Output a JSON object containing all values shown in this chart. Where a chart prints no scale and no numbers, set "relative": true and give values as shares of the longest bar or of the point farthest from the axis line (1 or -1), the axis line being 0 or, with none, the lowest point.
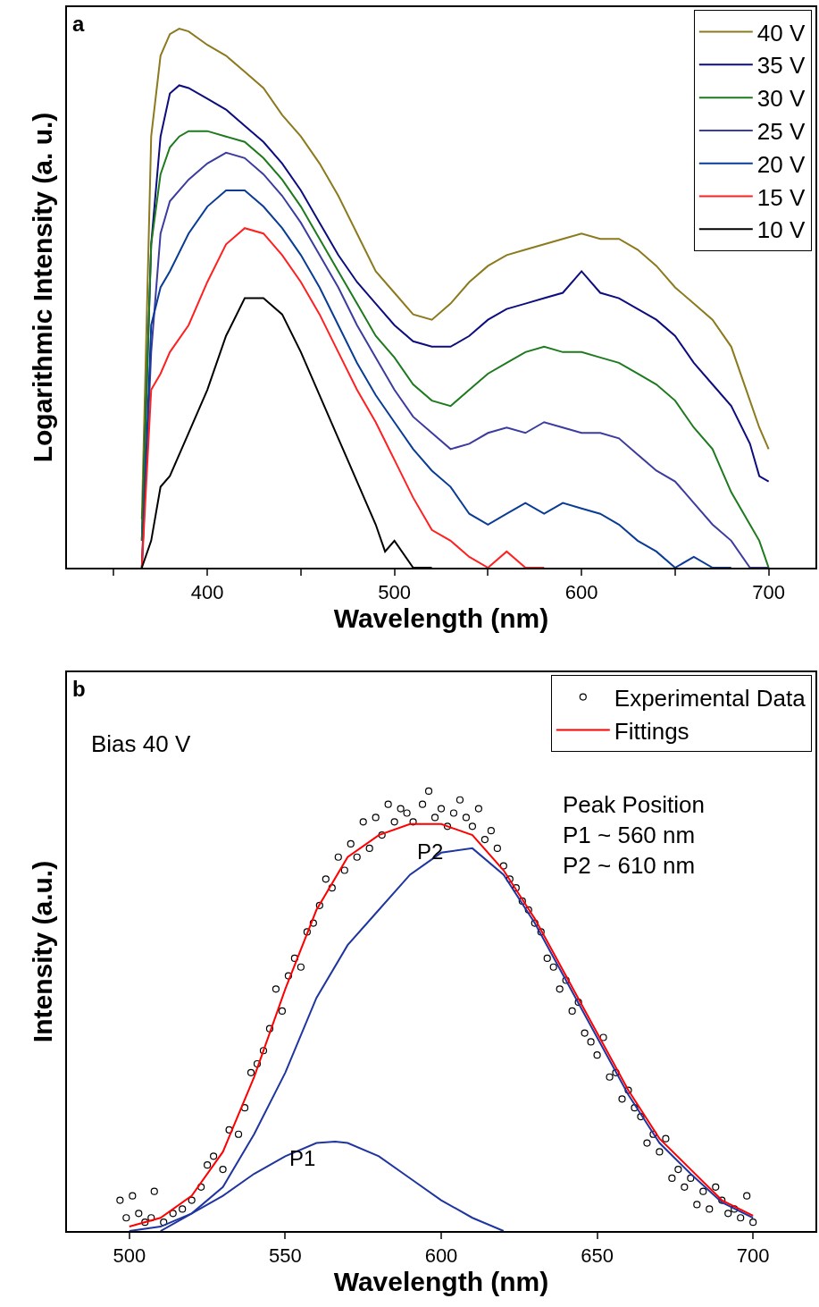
{
  "chart_data": [
    {
      "type": "line",
      "title": "a",
      "xlabel": "Wavelength (nm)",
      "ylabel": "Logarithmic Intensity (a. u.)",
      "relative": true,
      "xlim": [
        325,
        725
      ],
      "xticks": [
        {
          "value": 350,
          "label": null
        },
        400,
        {
          "value": 450,
          "label": null
        },
        500,
        {
          "value": 550,
          "label": null
        },
        600,
        {
          "value": 650,
          "label": null
        },
        700
      ],
      "tick_labels": "x",
      "grid": false,
      "legend": "top right",
      "marker": "none",
      "line_style": "solid",
      "series": [
        {
          "name": "40 V",
          "color": "#8c7a1e",
          "x": [
            365,
            370,
            375,
            380,
            385,
            390,
            400,
            410,
            420,
            430,
            440,
            450,
            460,
            470,
            480,
            490,
            500,
            510,
            520,
            530,
            540,
            550,
            560,
            570,
            580,
            590,
            600,
            610,
            620,
            630,
            640,
            650,
            660,
            670,
            680,
            690,
            695,
            700
          ],
          "values": [
            0.09,
            0.8,
            0.95,
            0.99,
            1.0,
            0.995,
            0.97,
            0.95,
            0.92,
            0.89,
            0.84,
            0.8,
            0.75,
            0.69,
            0.62,
            0.55,
            0.51,
            0.47,
            0.46,
            0.49,
            0.53,
            0.56,
            0.58,
            0.59,
            0.6,
            0.61,
            0.62,
            0.61,
            0.61,
            0.59,
            0.56,
            0.52,
            0.49,
            0.46,
            0.41,
            0.31,
            0.26,
            0.22
          ]
        },
        {
          "name": "35 V",
          "color": "#0d0d80",
          "x": [
            365,
            370,
            375,
            380,
            385,
            390,
            400,
            410,
            420,
            430,
            440,
            450,
            460,
            470,
            480,
            490,
            500,
            510,
            520,
            530,
            540,
            550,
            560,
            570,
            580,
            590,
            600,
            610,
            620,
            630,
            640,
            650,
            660,
            670,
            680,
            690,
            695,
            700
          ],
          "values": [
            0.05,
            0.6,
            0.8,
            0.88,
            0.895,
            0.89,
            0.87,
            0.85,
            0.82,
            0.79,
            0.75,
            0.7,
            0.64,
            0.58,
            0.53,
            0.49,
            0.45,
            0.42,
            0.41,
            0.41,
            0.43,
            0.46,
            0.48,
            0.49,
            0.5,
            0.51,
            0.55,
            0.51,
            0.5,
            0.48,
            0.46,
            0.43,
            0.38,
            0.34,
            0.3,
            0.23,
            0.17,
            0.16
          ]
        },
        {
          "name": "30 V",
          "color": "#1e7a1e",
          "x": [
            365,
            370,
            375,
            380,
            385,
            390,
            400,
            410,
            420,
            430,
            440,
            450,
            460,
            470,
            480,
            490,
            500,
            510,
            520,
            530,
            540,
            550,
            560,
            570,
            580,
            590,
            600,
            610,
            620,
            630,
            640,
            650,
            660,
            670,
            680,
            690,
            695,
            700
          ],
          "values": [
            0.05,
            0.6,
            0.73,
            0.78,
            0.8,
            0.81,
            0.81,
            0.8,
            0.79,
            0.76,
            0.72,
            0.67,
            0.61,
            0.55,
            0.49,
            0.43,
            0.39,
            0.34,
            0.31,
            0.3,
            0.33,
            0.36,
            0.38,
            0.4,
            0.41,
            0.4,
            0.4,
            0.39,
            0.38,
            0.36,
            0.34,
            0.31,
            0.26,
            0.22,
            0.14,
            0.08,
            0.05,
            0.0
          ]
        },
        {
          "name": "25 V",
          "color": "#3c3ca0",
          "x": [
            365,
            370,
            375,
            380,
            390,
            400,
            410,
            420,
            430,
            440,
            450,
            460,
            470,
            480,
            490,
            500,
            510,
            520,
            530,
            540,
            550,
            560,
            570,
            580,
            590,
            600,
            610,
            620,
            630,
            640,
            650,
            660,
            670,
            680,
            690,
            695,
            700
          ],
          "values": [
            0.0,
            0.4,
            0.62,
            0.68,
            0.72,
            0.75,
            0.77,
            0.76,
            0.73,
            0.69,
            0.64,
            0.58,
            0.52,
            0.45,
            0.39,
            0.33,
            0.28,
            0.25,
            0.22,
            0.23,
            0.25,
            0.26,
            0.25,
            0.27,
            0.26,
            0.25,
            0.25,
            0.24,
            0.21,
            0.18,
            0.16,
            0.12,
            0.08,
            0.05,
            0.0,
            0.0,
            0.0
          ]
        },
        {
          "name": "20 V",
          "color": "#0a3c96",
          "x": [
            365,
            370,
            375,
            380,
            390,
            400,
            410,
            420,
            430,
            440,
            450,
            460,
            470,
            480,
            490,
            500,
            510,
            520,
            530,
            540,
            550,
            560,
            570,
            580,
            590,
            600,
            610,
            620,
            630,
            640,
            650,
            660,
            670,
            680
          ],
          "values": [
            0.0,
            0.45,
            0.52,
            0.55,
            0.62,
            0.67,
            0.7,
            0.7,
            0.67,
            0.63,
            0.58,
            0.52,
            0.45,
            0.38,
            0.32,
            0.27,
            0.22,
            0.18,
            0.15,
            0.1,
            0.08,
            0.1,
            0.12,
            0.1,
            0.12,
            0.11,
            0.1,
            0.08,
            0.05,
            0.03,
            0.0,
            0.02,
            0.0,
            0.0
          ]
        },
        {
          "name": "15 V",
          "color": "#ff2020",
          "x": [
            365,
            370,
            375,
            380,
            390,
            400,
            410,
            420,
            430,
            440,
            450,
            460,
            470,
            480,
            490,
            500,
            510,
            520,
            530,
            540,
            550,
            560,
            570,
            580
          ],
          "values": [
            0.0,
            0.33,
            0.36,
            0.4,
            0.45,
            0.53,
            0.6,
            0.63,
            0.62,
            0.58,
            0.53,
            0.47,
            0.4,
            0.33,
            0.27,
            0.2,
            0.13,
            0.07,
            0.05,
            0.02,
            0.0,
            0.03,
            0.0,
            0.0
          ]
        },
        {
          "name": "10 V",
          "color": "#000000",
          "x": [
            365,
            370,
            375,
            380,
            390,
            400,
            410,
            420,
            430,
            440,
            450,
            460,
            470,
            480,
            490,
            495,
            500,
            510,
            520
          ],
          "values": [
            0.0,
            0.05,
            0.15,
            0.17,
            0.25,
            0.33,
            0.43,
            0.5,
            0.5,
            0.47,
            0.4,
            0.32,
            0.24,
            0.16,
            0.08,
            0.03,
            0.05,
            0.0,
            0.0
          ]
        }
      ]
    },
    {
      "type": "line",
      "title": "b",
      "xlabel": "Wavelength (nm)",
      "ylabel": "Intensity (a.u.)",
      "relative": true,
      "xlim": [
        480,
        720
      ],
      "xticks": [
        500,
        550,
        600,
        650,
        700
      ],
      "tick_labels": "x",
      "grid": false,
      "legend": "top right",
      "line_style": "solid",
      "annotations": [
        "Bias 40 V",
        "Peak Position\nP1 ~ 560 nm\nP2 ~ 610 nm",
        "P1",
        "P2"
      ],
      "series": [
        {
          "name": "Experimental Data",
          "type": "scatter",
          "marker": "circle",
          "color": "#000000",
          "x": [
            497,
            499,
            501,
            503,
            505,
            507,
            508,
            511,
            514,
            517,
            520,
            523,
            525,
            527,
            530,
            532,
            535,
            537,
            539,
            541,
            543,
            545,
            547,
            549,
            551,
            553,
            555,
            557,
            559,
            561,
            563,
            565,
            567,
            569,
            571,
            573,
            575,
            577,
            579,
            581,
            583,
            585,
            587,
            589,
            591,
            594,
            596,
            598,
            600,
            602,
            604,
            606,
            608,
            610,
            612,
            614,
            616,
            618,
            620,
            622,
            624,
            626,
            628,
            630,
            632,
            634,
            636,
            638,
            640,
            642,
            644,
            646,
            648,
            650,
            652,
            654,
            656,
            658,
            660,
            662,
            664,
            666,
            668,
            670,
            672,
            674,
            676,
            678,
            680,
            682,
            684,
            686,
            688,
            690,
            692,
            694,
            696,
            698,
            700
          ],
          "values": [
            0.07,
            0.03,
            0.08,
            0.04,
            0.02,
            0.03,
            0.09,
            0.02,
            0.04,
            0.05,
            0.07,
            0.1,
            0.15,
            0.17,
            0.14,
            0.23,
            0.22,
            0.28,
            0.36,
            0.38,
            0.41,
            0.46,
            0.55,
            0.5,
            0.58,
            0.62,
            0.6,
            0.68,
            0.7,
            0.74,
            0.8,
            0.78,
            0.85,
            0.82,
            0.88,
            0.85,
            0.93,
            0.87,
            0.94,
            0.9,
            0.97,
            0.93,
            0.96,
            0.95,
            0.93,
            0.97,
            1.0,
            0.94,
            0.96,
            0.92,
            0.95,
            0.98,
            0.94,
            0.92,
            0.96,
            0.89,
            0.91,
            0.87,
            0.83,
            0.8,
            0.78,
            0.75,
            0.73,
            0.7,
            0.68,
            0.62,
            0.6,
            0.55,
            0.57,
            0.5,
            0.52,
            0.45,
            0.43,
            0.4,
            0.44,
            0.35,
            0.36,
            0.3,
            0.32,
            0.28,
            0.26,
            0.2,
            0.22,
            0.18,
            0.21,
            0.12,
            0.14,
            0.1,
            0.12,
            0.06,
            0.09,
            0.05,
            0.1,
            0.07,
            0.04,
            0.05,
            0.03,
            0.08,
            0.02
          ]
        },
        {
          "color": "#1f35a0",
          "x": [
            510,
            520,
            530,
            540,
            550,
            560,
            570,
            580,
            590,
            600,
            610,
            620,
            630,
            640,
            650,
            660,
            670,
            680,
            690,
            700
          ],
          "values": [
            0.0,
            0.04,
            0.1,
            0.22,
            0.36,
            0.53,
            0.65,
            0.73,
            0.81,
            0.86,
            0.87,
            0.81,
            0.7,
            0.57,
            0.44,
            0.31,
            0.2,
            0.13,
            0.065,
            0.03
          ]
        },
        {
          "color": "#1f35a0",
          "x": [
            500,
            510,
            520,
            530,
            540,
            550,
            560,
            566,
            570,
            580,
            590,
            600,
            610,
            620
          ],
          "values": [
            0.0,
            0.01,
            0.04,
            0.08,
            0.13,
            0.17,
            0.2,
            0.203,
            0.2,
            0.17,
            0.12,
            0.07,
            0.03,
            0.0
          ]
        },
        {
          "name": "Fittings",
          "color": "#ff0000",
          "x": [
            500,
            510,
            520,
            530,
            540,
            550,
            560,
            570,
            580,
            590,
            600,
            610,
            620,
            630,
            640,
            650,
            660,
            670,
            680,
            690,
            700
          ],
          "values": [
            0.01,
            0.03,
            0.08,
            0.18,
            0.35,
            0.55,
            0.73,
            0.85,
            0.9,
            0.925,
            0.925,
            0.9,
            0.82,
            0.71,
            0.58,
            0.45,
            0.32,
            0.21,
            0.14,
            0.07,
            0.035
          ]
        }
      ]
    }
  ]
}
